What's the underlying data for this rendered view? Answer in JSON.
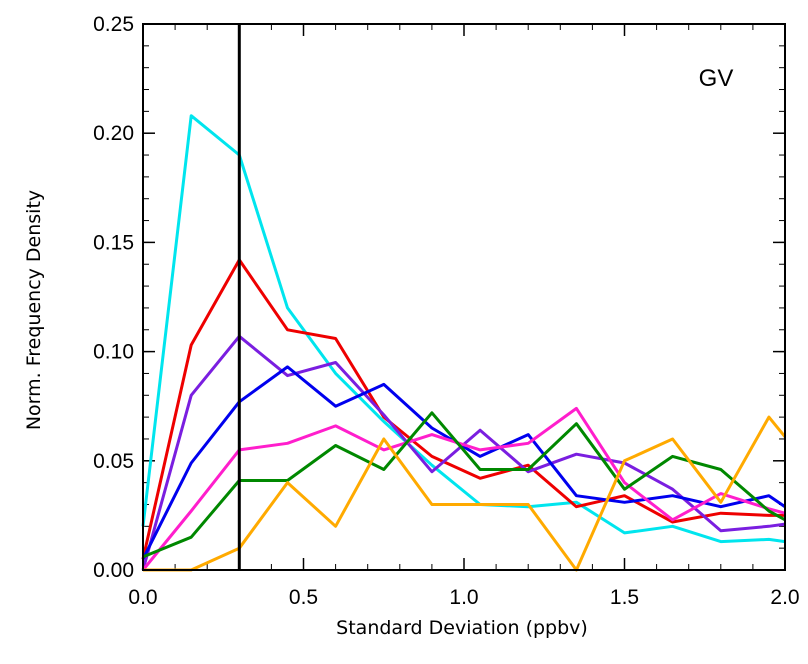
{
  "chart_data": {
    "type": "line",
    "title": "",
    "xlabel": "Standard Deviation (ppbv)",
    "ylabel": "Norm. Frequency Density",
    "xlim": [
      0.0,
      2.0
    ],
    "ylim": [
      0.0,
      0.25
    ],
    "x_ticks": [
      "0.0",
      "0.5",
      "1.0",
      "1.5",
      "2.0"
    ],
    "y_ticks": [
      "0.00",
      "0.05",
      "0.10",
      "0.15",
      "0.20",
      "0.25"
    ],
    "annotation": "GV",
    "vertical_line_x": 0.3,
    "grid": false,
    "x": [
      0.0,
      0.15,
      0.3,
      0.45,
      0.6,
      0.75,
      0.9,
      1.05,
      1.2,
      1.35,
      1.5,
      1.65,
      1.8,
      1.95,
      2.0
    ],
    "series": [
      {
        "color": "#00e5ee",
        "values": [
          0.02,
          0.208,
          0.19,
          0.12,
          0.09,
          0.068,
          0.048,
          0.03,
          0.029,
          0.031,
          0.017,
          0.02,
          0.013,
          0.014,
          0.013
        ]
      },
      {
        "color": "#ee0000",
        "values": [
          0.005,
          0.103,
          0.142,
          0.11,
          0.106,
          0.07,
          0.052,
          0.042,
          0.048,
          0.029,
          0.034,
          0.022,
          0.026,
          0.025,
          0.025
        ]
      },
      {
        "color": "#7a1ee0",
        "values": [
          0.0,
          0.08,
          0.107,
          0.089,
          0.095,
          0.071,
          0.045,
          0.064,
          0.045,
          0.053,
          0.049,
          0.037,
          0.018,
          0.02,
          0.021
        ]
      },
      {
        "color": "#0000ee",
        "values": [
          0.005,
          0.049,
          0.077,
          0.093,
          0.075,
          0.085,
          0.065,
          0.052,
          0.062,
          0.034,
          0.031,
          0.034,
          0.029,
          0.034,
          0.029
        ]
      },
      {
        "color": "#ff1ecc",
        "values": [
          0.0,
          0.027,
          0.055,
          0.058,
          0.066,
          0.055,
          0.062,
          0.055,
          0.058,
          0.074,
          0.04,
          0.023,
          0.035,
          0.028,
          0.026
        ]
      },
      {
        "color": "#008800",
        "values": [
          0.006,
          0.015,
          0.041,
          0.041,
          0.057,
          0.046,
          0.072,
          0.046,
          0.046,
          0.067,
          0.037,
          0.052,
          0.046,
          0.027,
          0.023
        ]
      },
      {
        "color": "#ffaa00",
        "values": [
          0.0,
          0.0,
          0.01,
          0.04,
          0.02,
          0.06,
          0.03,
          0.03,
          0.03,
          0.0,
          0.05,
          0.06,
          0.031,
          0.07,
          0.061
        ]
      }
    ]
  }
}
